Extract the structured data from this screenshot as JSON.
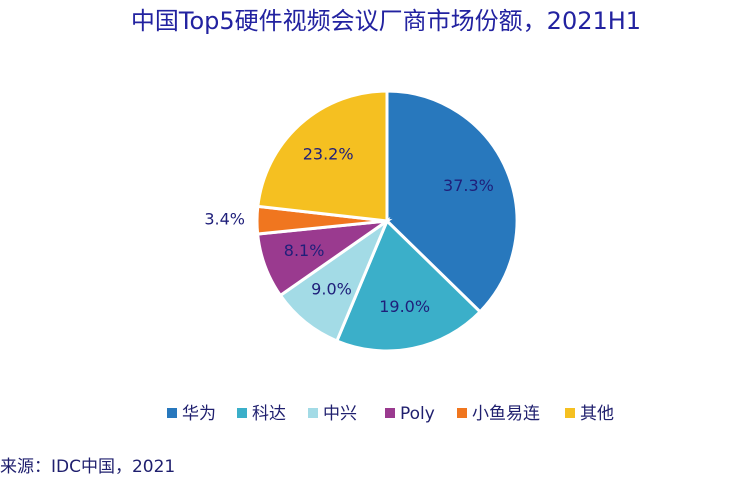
{
  "chart_data": {
    "type": "pie",
    "title": "中国Top5硬件视频会议厂商市场份额，2021H1",
    "categories": [
      "华为",
      "科达",
      "中兴",
      "Poly",
      "小鱼易连",
      "其他"
    ],
    "values": [
      37.3,
      19.0,
      9.0,
      8.1,
      3.4,
      23.2
    ],
    "value_labels": [
      "37.3%",
      "19.0%",
      "9.0%",
      "8.1%",
      "3.4%",
      "23.2%"
    ],
    "colors": [
      "#2878bd",
      "#3bafc9",
      "#a3dbe6",
      "#9a3a8f",
      "#f0761f",
      "#f5c021"
    ],
    "legend": "bottom",
    "source": "来源：IDC中国，2021"
  }
}
